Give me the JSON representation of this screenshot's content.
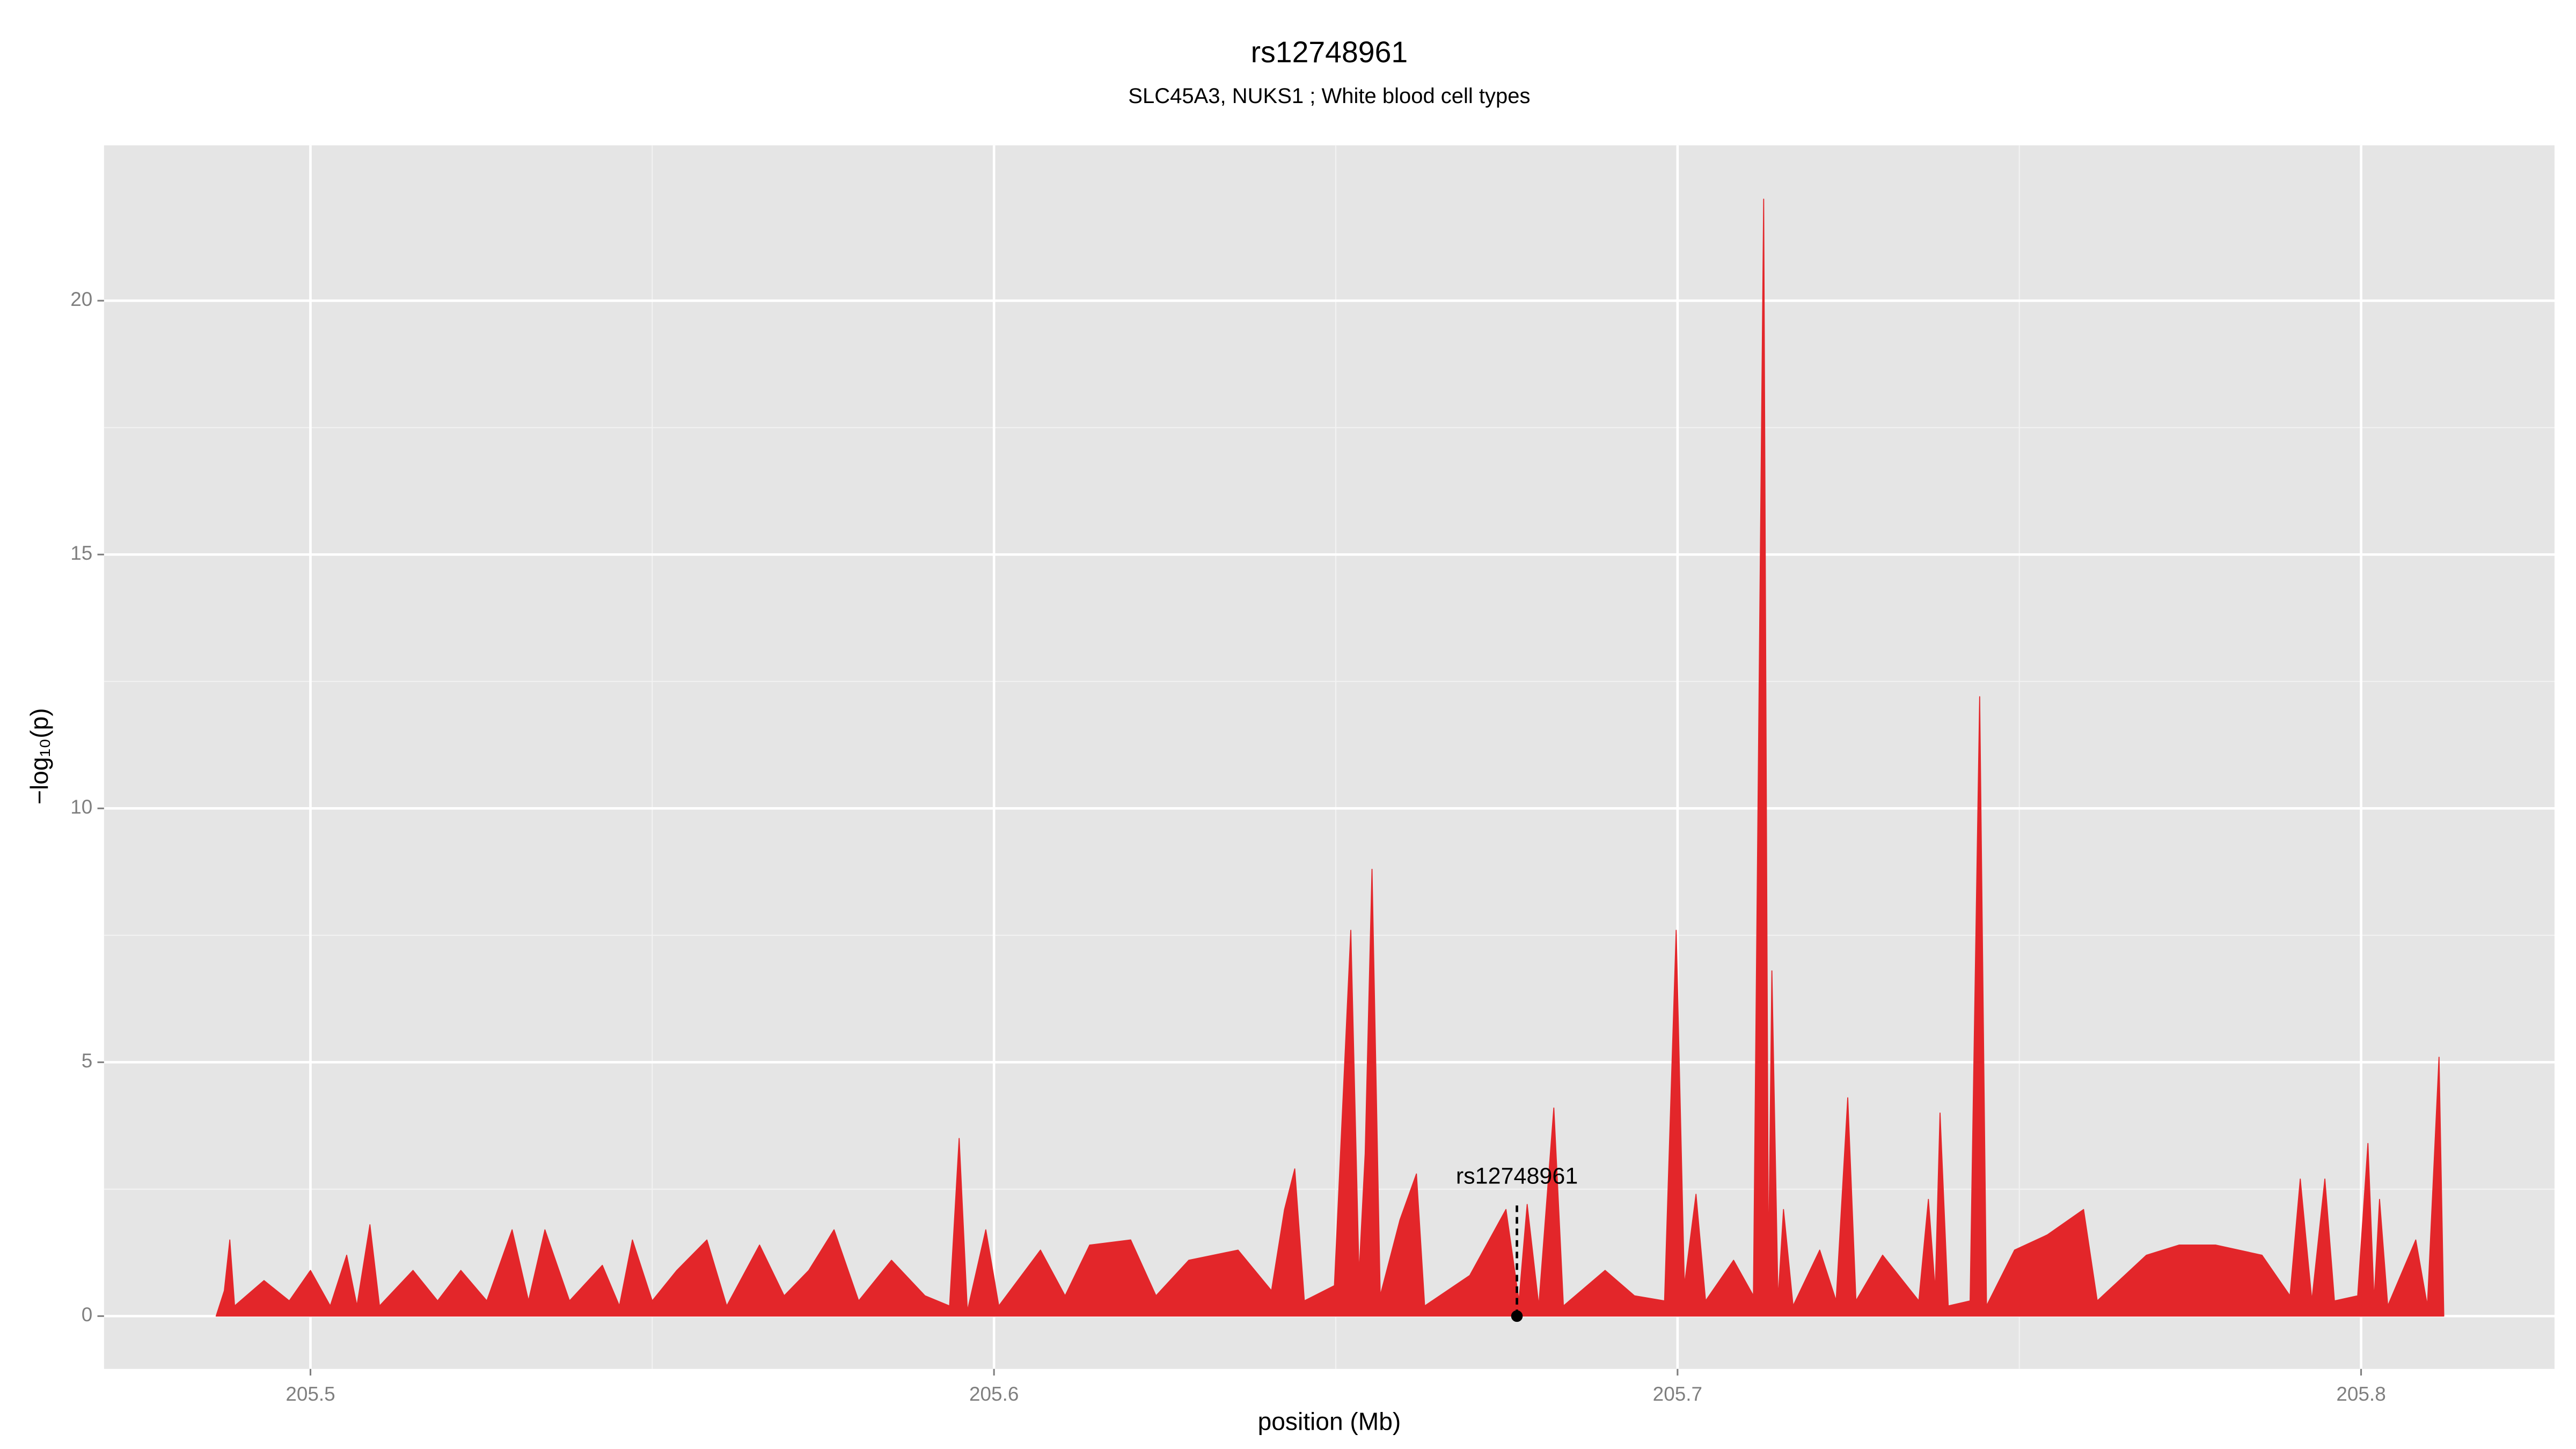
{
  "chart_data": {
    "type": "area",
    "title": "rs12748961",
    "subtitle": "SLC45A3, NUKS1 ; White blood cell types",
    "x_label": "position (Mb)",
    "y_label": "−log₁₀(p)",
    "xlim": [
      205.4698,
      205.8283
    ],
    "ylim": [
      -1.04,
      23.06
    ],
    "xticks": [
      205.5,
      205.6,
      205.7,
      205.8
    ],
    "yticks": [
      0,
      5,
      10,
      15,
      20
    ],
    "grid": true,
    "x": [
      205.4862,
      205.4874,
      205.4882,
      205.4889,
      205.4932,
      205.4969,
      205.5,
      205.5029,
      205.5053,
      205.5068,
      205.5087,
      205.5101,
      205.515,
      205.5186,
      205.522,
      205.5258,
      205.5295,
      205.5319,
      205.5343,
      205.5379,
      205.5427,
      205.5452,
      205.5471,
      205.55,
      205.5536,
      205.558,
      205.5609,
      205.5657,
      205.5693,
      205.5729,
      205.5766,
      205.5802,
      205.585,
      205.5899,
      205.5935,
      205.5949,
      205.5961,
      205.5988,
      205.6007,
      205.6068,
      205.6104,
      205.614,
      205.62,
      205.6237,
      205.6285,
      205.6357,
      205.6406,
      205.6425,
      205.644,
      205.6454,
      205.6498,
      205.6522,
      205.6534,
      205.6543,
      205.6553,
      205.6565,
      205.6594,
      205.6618,
      205.663,
      205.6696,
      205.6749,
      205.6768,
      205.678,
      205.6797,
      205.6819,
      205.6833,
      205.6894,
      205.6937,
      205.6981,
      205.6998,
      205.701,
      205.7027,
      205.7041,
      205.7082,
      205.7111,
      205.7126,
      205.7133,
      205.7138,
      205.7147,
      205.7155,
      205.7169,
      205.7208,
      205.7232,
      205.7249,
      205.7261,
      205.73,
      205.7353,
      205.7367,
      205.7377,
      205.7384,
      205.7396,
      205.7428,
      205.7442,
      205.7452,
      205.7493,
      205.7541,
      205.7594,
      205.7614,
      205.7686,
      205.7734,
      205.7787,
      205.7855,
      205.7896,
      205.7911,
      205.7928,
      205.7947,
      205.7961,
      205.7995,
      205.801,
      205.8019,
      205.8027,
      205.8039,
      205.808,
      205.8097,
      205.8114,
      205.8121
    ],
    "series": [
      {
        "color": "#e3262a",
        "values": [
          0,
          0.5,
          1.5,
          0.2,
          0.7,
          0.3,
          0.9,
          0.2,
          1.2,
          0.2,
          1.8,
          0.2,
          0.9,
          0.3,
          0.9,
          0.3,
          1.7,
          0.3,
          1.7,
          0.3,
          1.0,
          0.2,
          1.5,
          0.3,
          0.9,
          1.5,
          0.2,
          1.4,
          0.4,
          0.9,
          1.7,
          0.3,
          1.1,
          0.4,
          0.2,
          3.5,
          0.1,
          1.7,
          0.2,
          1.3,
          0.4,
          1.4,
          1.5,
          0.4,
          1.1,
          1.3,
          0.5,
          2.1,
          2.9,
          0.3,
          0.6,
          7.6,
          0.8,
          3.2,
          8.8,
          0.4,
          1.9,
          2.8,
          0.2,
          0.8,
          2.1,
          0.3,
          2.2,
          0.2,
          4.1,
          0.2,
          0.9,
          0.4,
          0.3,
          7.6,
          0.6,
          2.4,
          0.3,
          1.1,
          0.4,
          22,
          0.8,
          6.8,
          0.3,
          2.1,
          0.2,
          1.3,
          0.3,
          4.3,
          0.3,
          1.2,
          0.3,
          2.3,
          0.5,
          4.0,
          0.2,
          0.3,
          12.2,
          0.2,
          1.3,
          1.6,
          2.1,
          0.3,
          1.2,
          1.4,
          1.4,
          1.2,
          0.4,
          2.7,
          0.3,
          2.7,
          0.3,
          0.4,
          3.4,
          0.3,
          2.3,
          0.2,
          1.5,
          0.2,
          5.1,
          0
        ]
      }
    ],
    "annotations": [
      {
        "text": "rs12748961",
        "x": 205.6765,
        "y": 0
      }
    ]
  }
}
